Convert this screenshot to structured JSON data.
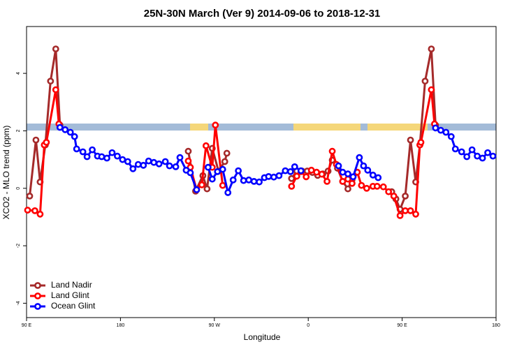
{
  "chart_data": {
    "type": "line",
    "title": "25N-30N March (Ver 9)   2014-09-06 to 2018-12-31",
    "x_label": "Longitude",
    "y_label": "XCO2 - MLO trend (ppm)",
    "xlim": [
      90,
      540
    ],
    "ylim": [
      -4.5,
      5.63
    ],
    "xticks": [
      {
        "value": 90,
        "label": "90 E"
      },
      180,
      {
        "value": 270,
        "label": "90 W"
      },
      {
        "value": 360,
        "label": "0"
      },
      {
        "value": 450,
        "label": "90 E"
      },
      {
        "value": 540,
        "label": "180"
      }
    ],
    "yticks": [
      -4,
      -2,
      0,
      2,
      4
    ],
    "legend": "bottomleft",
    "series": [
      {
        "name": "Land Nadir",
        "color": "#a52a2a",
        "x": [
          93,
          99,
          103,
          108,
          113,
          118,
          122,
          null,
          245,
          252,
          259,
          263,
          268,
          274,
          280,
          282,
          null,
          344,
          349,
          354,
          359,
          364,
          369,
          374,
          379,
          383,
          388,
          393,
          398,
          402,
          null,
          440,
          444,
          448,
          453,
          458,
          463,
          467,
          472,
          478,
          482
        ],
        "values": [
          -0.27,
          1.68,
          0.22,
          1.51,
          3.73,
          4.85,
          2.2,
          null,
          1.29,
          -0.1,
          0.44,
          -0.02,
          1.39,
          0.6,
          0.93,
          1.22,
          null,
          0.34,
          0.6,
          0.6,
          0.6,
          0.55,
          0.45,
          0.5,
          0.6,
          0.98,
          0.7,
          0.24,
          -0.02,
          0.3,
          null,
          -0.12,
          -0.37,
          -0.73,
          -0.27,
          1.68,
          0.22,
          1.51,
          3.73,
          4.85,
          2.2
        ]
      },
      {
        "name": "Land Glint",
        "color": "#ff0000",
        "x": [
          91,
          98,
          103,
          107,
          109,
          118,
          121,
          null,
          245,
          247,
          253,
          258,
          262,
          268,
          271,
          278,
          null,
          344,
          349,
          353,
          358,
          363,
          368,
          373,
          378,
          383,
          387,
          393,
          398,
          402,
          407,
          411,
          416,
          422,
          426,
          432,
          437,
          442,
          448,
          453,
          458,
          463,
          467,
          468,
          478,
          481
        ],
        "values": [
          -0.76,
          -0.78,
          -0.9,
          1.51,
          1.6,
          3.43,
          2.24,
          null,
          0.95,
          0.73,
          -0.05,
          0.12,
          1.48,
          0.73,
          2.2,
          0.1,
          null,
          0.07,
          0.42,
          0.58,
          0.4,
          0.63,
          0.56,
          0.49,
          0.24,
          1.29,
          0.83,
          0.24,
          0.32,
          0.17,
          0.56,
          0.1,
          0.0,
          0.07,
          0.07,
          0.05,
          -0.12,
          -0.27,
          -0.95,
          -0.78,
          -0.78,
          -0.9,
          1.51,
          1.6,
          3.43,
          2.24
        ]
      },
      {
        "name": "Ocean Glint",
        "color": "#0000ff",
        "x": [
          122,
          127,
          132,
          136,
          138,
          144,
          148,
          153,
          158,
          162,
          167,
          172,
          177,
          182,
          187,
          192,
          197,
          202,
          207,
          212,
          217,
          223,
          227,
          233,
          237,
          243,
          247,
          253,
          null,
          264,
          268,
          273,
          278,
          283,
          288,
          293,
          298,
          303,
          308,
          313,
          318,
          322,
          327,
          332,
          338,
          343,
          347,
          353,
          null,
          389,
          393,
          398,
          403,
          409,
          413,
          417,
          422,
          427,
          null,
          482,
          487,
          492,
          497,
          501,
          507,
          512,
          517,
          522,
          527,
          532,
          537
        ],
        "values": [
          2.12,
          2.04,
          1.95,
          1.8,
          1.37,
          1.27,
          1.1,
          1.34,
          1.12,
          1.1,
          1.05,
          1.24,
          1.12,
          1.0,
          0.93,
          0.68,
          0.83,
          0.8,
          0.95,
          0.9,
          0.85,
          0.93,
          0.78,
          0.75,
          1.07,
          0.63,
          0.54,
          -0.05,
          null,
          0.73,
          0.32,
          0.58,
          0.66,
          -0.15,
          0.29,
          0.61,
          0.27,
          0.29,
          0.24,
          0.22,
          0.37,
          0.41,
          0.39,
          0.44,
          0.61,
          0.58,
          0.75,
          0.61,
          null,
          0.78,
          0.56,
          0.5,
          0.4,
          1.07,
          0.78,
          0.63,
          0.46,
          0.37,
          null,
          2.1,
          2.02,
          1.95,
          1.8,
          1.37,
          1.27,
          1.1,
          1.34,
          1.12,
          1.05,
          1.24,
          1.12
        ]
      }
    ]
  }
}
